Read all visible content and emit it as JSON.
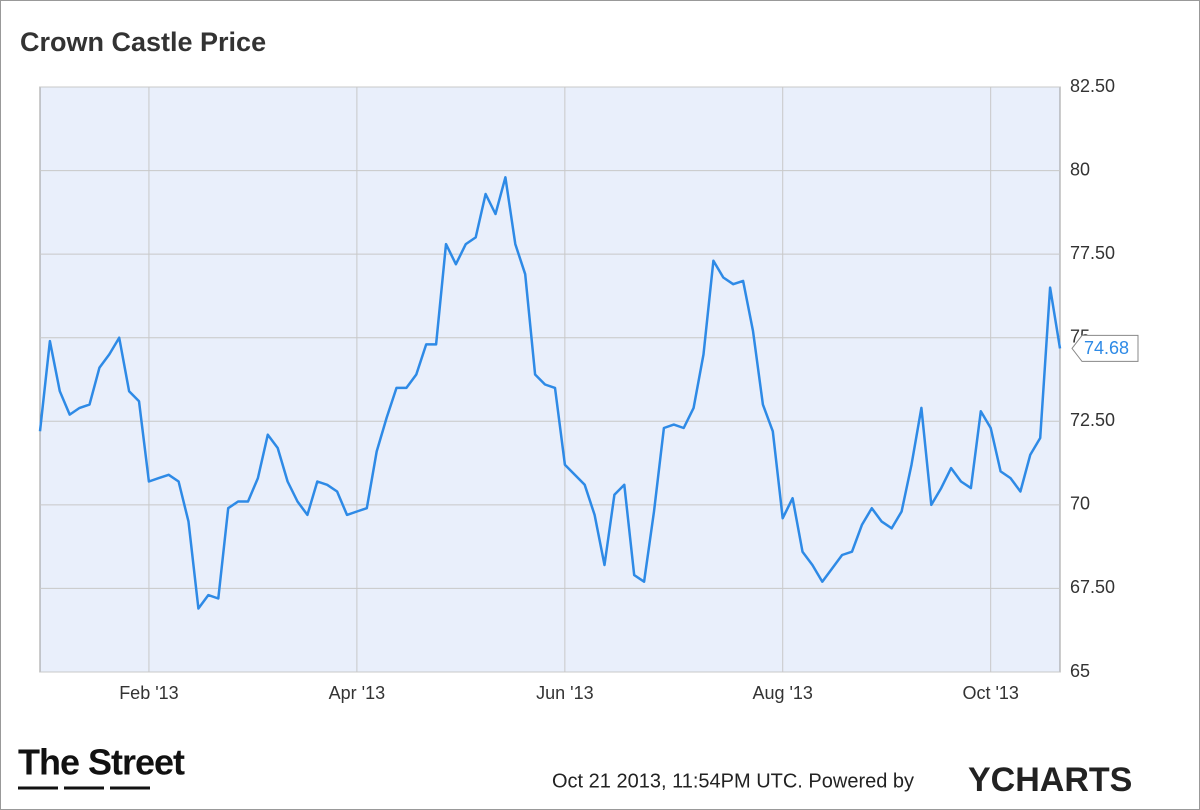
{
  "chart_data": {
    "type": "line",
    "title": "Crown Castle  Price",
    "categories": [
      null,
      null,
      null,
      null,
      null,
      null,
      null,
      null,
      null,
      null,
      null,
      "Feb '13",
      null,
      null,
      null,
      null,
      null,
      null,
      null,
      null,
      null,
      null,
      null,
      null,
      null,
      null,
      null,
      null,
      null,
      null,
      null,
      null,
      "Apr '13",
      null,
      null,
      null,
      null,
      null,
      null,
      null,
      null,
      null,
      null,
      null,
      null,
      null,
      null,
      null,
      null,
      null,
      null,
      null,
      null,
      "Jun '13",
      null,
      null,
      null,
      null,
      null,
      null,
      null,
      null,
      null,
      null,
      null,
      null,
      null,
      null,
      null,
      null,
      null,
      null,
      null,
      null,
      null,
      "Aug '13",
      null,
      null,
      null,
      null,
      null,
      null,
      null,
      null,
      null,
      null,
      null,
      null,
      null,
      null,
      null,
      null,
      null,
      null,
      null,
      null,
      "Oct '13",
      null,
      null,
      null,
      null,
      null,
      null,
      null
    ],
    "values": [
      72.2,
      74.9,
      73.4,
      72.7,
      72.9,
      73,
      74.1,
      74.5,
      75,
      73.4,
      73.1,
      70.7,
      70.8,
      70.9,
      70.7,
      69.5,
      66.9,
      67.3,
      67.2,
      69.9,
      70.1,
      70.1,
      70.8,
      72.1,
      71.7,
      70.7,
      70.1,
      69.7,
      70.7,
      70.6,
      70.4,
      69.7,
      69.8,
      69.9,
      71.6,
      72.6,
      73.5,
      73.5,
      73.9,
      74.8,
      74.8,
      77.8,
      77.2,
      77.8,
      78,
      79.3,
      78.7,
      79.8,
      77.8,
      76.9,
      73.9,
      73.6,
      73.5,
      71.2,
      70.9,
      70.6,
      69.7,
      68.2,
      70.3,
      70.6,
      67.9,
      67.7,
      69.8,
      72.3,
      72.4,
      72.3,
      72.9,
      74.5,
      77.3,
      76.8,
      76.6,
      76.7,
      75.2,
      73,
      72.2,
      69.6,
      70.2,
      68.6,
      68.2,
      67.7,
      68.1,
      68.5,
      68.6,
      69.4,
      69.9,
      69.5,
      69.3,
      69.8,
      71.2,
      72.9,
      70,
      70.5,
      71.1,
      70.7,
      70.5,
      72.8,
      72.3,
      71,
      70.8,
      70.4,
      71.5,
      72,
      76.5,
      74.68
    ],
    "color": "#2e8ae6",
    "ylim": [
      65,
      82.5
    ],
    "yticks": [
      65,
      {
        "value": 67.5,
        "label": "67.50"
      },
      70,
      {
        "value": 72.5,
        "label": "72.50"
      },
      75,
      {
        "value": 77.5,
        "label": "77.50"
      },
      80,
      {
        "value": 82.5,
        "label": "82.50"
      }
    ],
    "grid": true
  },
  "footer": {
    "brand": "The Street",
    "timestamp": "Oct 21 2013, 11:54PM UTC.  Powered by",
    "provider": "YCHARTS"
  }
}
